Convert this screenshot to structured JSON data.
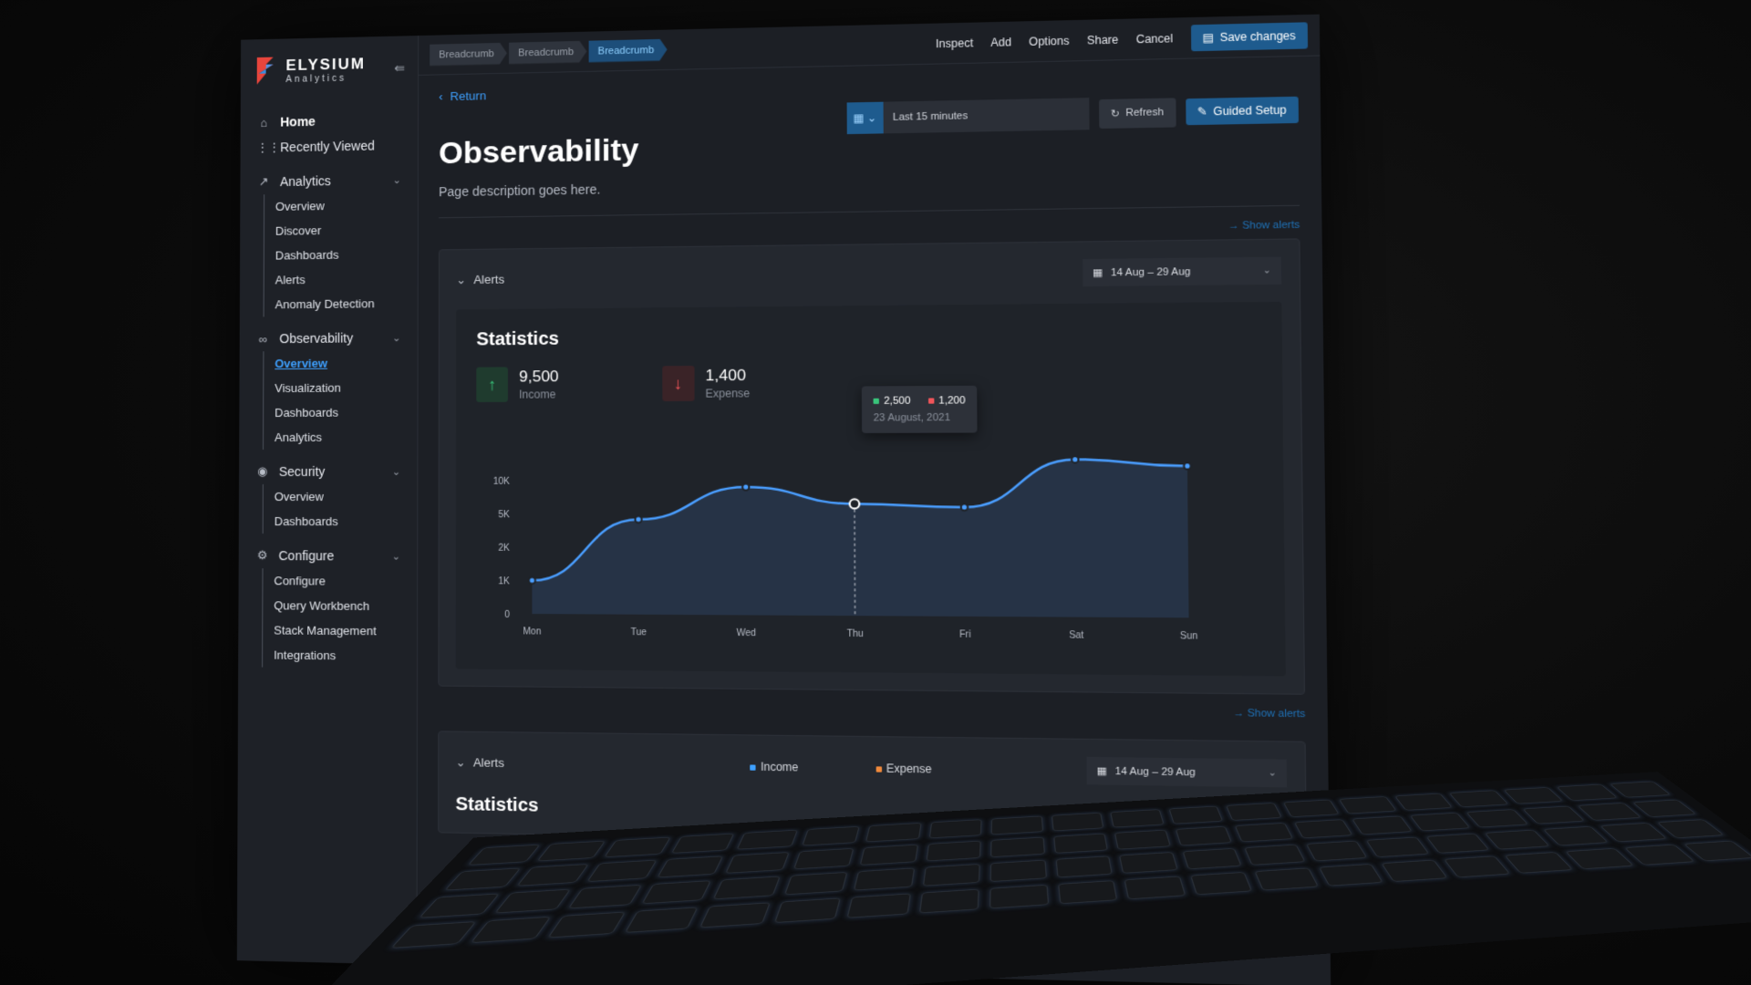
{
  "brand": {
    "name": "ELYSIUM",
    "sub": "Analytics"
  },
  "sidebar": {
    "home": "Home",
    "recent": "Recently Viewed",
    "groups": [
      {
        "label": "Analytics",
        "icon": "chart-icon",
        "items": [
          "Overview",
          "Discover",
          "Dashboards",
          "Alerts",
          "Anomaly Detection"
        ]
      },
      {
        "label": "Observability",
        "icon": "glasses-icon",
        "items": [
          "Overview",
          "Visualization",
          "Dashboards",
          "Analytics"
        ],
        "active": 0
      },
      {
        "label": "Security",
        "icon": "shield-icon",
        "items": [
          "Overview",
          "Dashboards"
        ]
      },
      {
        "label": "Configure",
        "icon": "gear-icon",
        "items": [
          "Configure",
          "Query Workbench",
          "Stack Management",
          "Integrations"
        ]
      }
    ]
  },
  "topbar": {
    "breadcrumbs": [
      "Breadcrumb",
      "Breadcrumb",
      "Breadcrumb"
    ],
    "actions": [
      "Inspect",
      "Add",
      "Options",
      "Share",
      "Cancel"
    ],
    "save": "Save changes"
  },
  "page": {
    "return": "Return",
    "title": "Observability",
    "description": "Page description goes here.",
    "time_range": "Last 15 minutes",
    "refresh": "Refresh",
    "guided": "Guided Setup",
    "show_alerts": "Show alerts"
  },
  "panel1": {
    "header": "Alerts",
    "date_range": "14 Aug – 29 Aug",
    "stats_title": "Statistics",
    "income_value": "9,500",
    "income_label": "Income",
    "expense_value": "1,400",
    "expense_label": "Expense",
    "tooltip": {
      "income": "2,500",
      "expense": "1,200",
      "date": "23 August, 2021"
    }
  },
  "panel2": {
    "header": "Alerts",
    "date_range": "14 Aug – 29 Aug",
    "legend_income": "Income",
    "legend_expense": "Expense",
    "stats_title": "Statistics",
    "show_alerts": "Show alerts"
  },
  "colors": {
    "accent": "#3ea0ff",
    "income": "#39c47a",
    "expense": "#f0555a",
    "line": "#4a9eff"
  },
  "chart_data": {
    "type": "area",
    "categories": [
      "Mon",
      "Tue",
      "Wed",
      "Thu",
      "Fri",
      "Sat",
      "Sun"
    ],
    "y_ticks": [
      "0",
      "1K",
      "2K",
      "5K",
      "10K"
    ],
    "series": [
      {
        "values": [
          1000,
          4500,
          9000,
          6500,
          6000,
          13000,
          12000
        ]
      }
    ]
  }
}
